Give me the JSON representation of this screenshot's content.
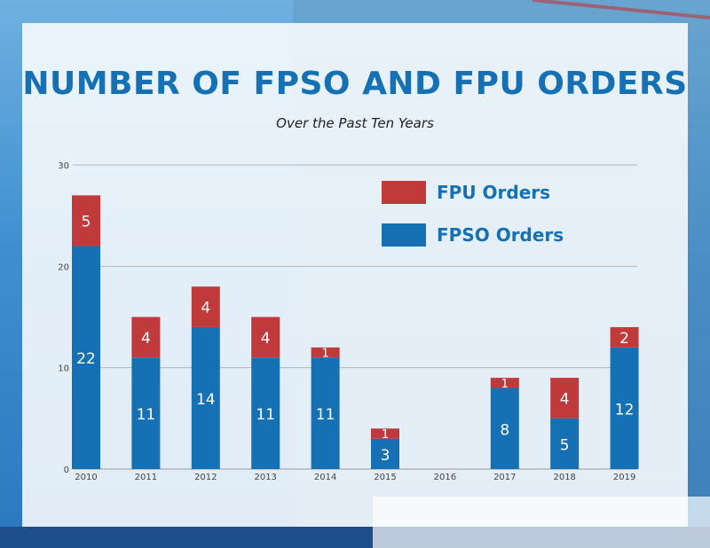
{
  "title": "NUMBER OF FPSO AND FPU ORDERS",
  "subtitle": "Over the Past Ten Years",
  "colors": {
    "fpso": "#1670b4",
    "fpu": "#c0393b",
    "title": "#1670b4"
  },
  "legend": [
    {
      "label": "FPU Orders",
      "color": "#c0393b"
    },
    {
      "label": "FPSO Orders",
      "color": "#1670b4"
    }
  ],
  "chart_data": {
    "type": "bar",
    "stacked": true,
    "categories": [
      "2010",
      "2011",
      "2012",
      "2013",
      "2014",
      "2015",
      "2016",
      "2017",
      "2018",
      "2019"
    ],
    "series": [
      {
        "name": "FPSO Orders",
        "values": [
          22,
          11,
          14,
          11,
          11,
          3,
          0,
          8,
          5,
          12
        ]
      },
      {
        "name": "FPU Orders",
        "values": [
          5,
          4,
          4,
          4,
          1,
          1,
          0,
          1,
          4,
          2
        ]
      }
    ],
    "ylim": [
      0,
      30
    ],
    "yticks": [
      0,
      10,
      20,
      30
    ],
    "grid": true,
    "legend_position": "top-right"
  }
}
